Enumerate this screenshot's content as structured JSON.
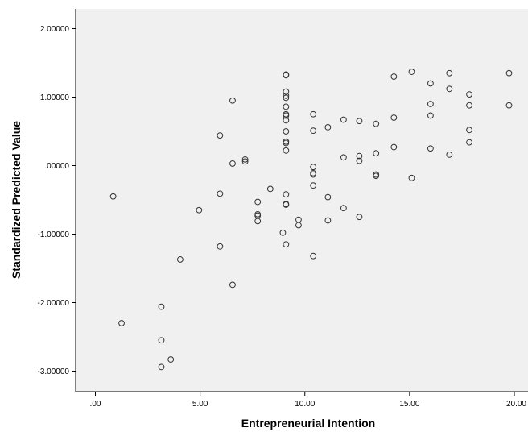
{
  "chart_data": {
    "type": "scatter",
    "title": "",
    "xlabel": "Entrepreneurial Intention",
    "ylabel": "Standardized Predicted Value",
    "xlim": [
      0,
      20
    ],
    "ylim": [
      -3.3,
      2.3
    ],
    "xticks": [
      0,
      5,
      10,
      15,
      20
    ],
    "xtick_labels": [
      ".00",
      "5.00",
      "10.00",
      "15.00",
      "20.00"
    ],
    "yticks": [
      -3,
      -2,
      -1,
      0,
      1,
      2
    ],
    "ytick_labels": [
      "-3.00000",
      "-2.00000",
      "-1.00000",
      ".00000",
      "1.00000",
      "2.00000"
    ],
    "grid": false,
    "legend": "none",
    "colors": {
      "plot_background": "#f0f0f0",
      "marker_stroke": "#333333",
      "axis": "#000000"
    },
    "points": [
      {
        "x": 0.85,
        "y": -0.45
      },
      {
        "x": 1.25,
        "y": -2.3
      },
      {
        "x": 3.15,
        "y": -2.06
      },
      {
        "x": 3.15,
        "y": -2.55
      },
      {
        "x": 3.15,
        "y": -2.94
      },
      {
        "x": 3.6,
        "y": -2.83
      },
      {
        "x": 4.05,
        "y": -1.37
      },
      {
        "x": 4.95,
        "y": -0.65
      },
      {
        "x": 5.95,
        "y": 0.44
      },
      {
        "x": 5.95,
        "y": -0.41
      },
      {
        "x": 5.95,
        "y": -1.18
      },
      {
        "x": 6.55,
        "y": 0.95
      },
      {
        "x": 6.55,
        "y": 0.03
      },
      {
        "x": 6.55,
        "y": -1.74
      },
      {
        "x": 7.15,
        "y": 0.09
      },
      {
        "x": 7.15,
        "y": 0.06
      },
      {
        "x": 7.75,
        "y": -0.53
      },
      {
        "x": 7.75,
        "y": -0.71
      },
      {
        "x": 7.75,
        "y": -0.73
      },
      {
        "x": 7.75,
        "y": -0.81
      },
      {
        "x": 8.35,
        "y": -0.34
      },
      {
        "x": 8.95,
        "y": -0.98
      },
      {
        "x": 9.1,
        "y": 1.33
      },
      {
        "x": 9.1,
        "y": 1.32
      },
      {
        "x": 9.1,
        "y": 1.08
      },
      {
        "x": 9.1,
        "y": 1.02
      },
      {
        "x": 9.1,
        "y": 0.99
      },
      {
        "x": 9.1,
        "y": 0.86
      },
      {
        "x": 9.1,
        "y": 0.75
      },
      {
        "x": 9.1,
        "y": 0.73
      },
      {
        "x": 9.1,
        "y": 0.66
      },
      {
        "x": 9.1,
        "y": 0.5
      },
      {
        "x": 9.1,
        "y": 0.35
      },
      {
        "x": 9.1,
        "y": 0.33
      },
      {
        "x": 9.1,
        "y": 0.22
      },
      {
        "x": 9.1,
        "y": -0.42
      },
      {
        "x": 9.1,
        "y": -0.56
      },
      {
        "x": 9.1,
        "y": -0.57
      },
      {
        "x": 9.1,
        "y": -1.15
      },
      {
        "x": 9.7,
        "y": -0.79
      },
      {
        "x": 9.7,
        "y": -0.87
      },
      {
        "x": 10.4,
        "y": 0.75
      },
      {
        "x": 10.4,
        "y": 0.51
      },
      {
        "x": 10.4,
        "y": -0.02
      },
      {
        "x": 10.4,
        "y": -0.11
      },
      {
        "x": 10.4,
        "y": -0.13
      },
      {
        "x": 10.4,
        "y": -0.29
      },
      {
        "x": 10.4,
        "y": -1.32
      },
      {
        "x": 11.1,
        "y": 0.56
      },
      {
        "x": 11.1,
        "y": -0.46
      },
      {
        "x": 11.1,
        "y": -0.8
      },
      {
        "x": 11.85,
        "y": 0.67
      },
      {
        "x": 11.85,
        "y": 0.12
      },
      {
        "x": 11.85,
        "y": -0.62
      },
      {
        "x": 12.6,
        "y": 0.65
      },
      {
        "x": 12.6,
        "y": 0.14
      },
      {
        "x": 12.6,
        "y": 0.07
      },
      {
        "x": 12.6,
        "y": -0.75
      },
      {
        "x": 13.4,
        "y": 0.61
      },
      {
        "x": 13.4,
        "y": 0.18
      },
      {
        "x": 13.4,
        "y": -0.13
      },
      {
        "x": 13.4,
        "y": -0.15
      },
      {
        "x": 14.25,
        "y": 1.3
      },
      {
        "x": 14.25,
        "y": 0.7
      },
      {
        "x": 14.25,
        "y": 0.27
      },
      {
        "x": 15.1,
        "y": 1.37
      },
      {
        "x": 15.1,
        "y": -0.18
      },
      {
        "x": 16.0,
        "y": 1.2
      },
      {
        "x": 16.0,
        "y": 0.9
      },
      {
        "x": 16.0,
        "y": 0.73
      },
      {
        "x": 16.0,
        "y": 0.25
      },
      {
        "x": 16.9,
        "y": 1.35
      },
      {
        "x": 16.9,
        "y": 1.12
      },
      {
        "x": 16.9,
        "y": 0.16
      },
      {
        "x": 17.85,
        "y": 1.04
      },
      {
        "x": 17.85,
        "y": 0.88
      },
      {
        "x": 17.85,
        "y": 0.52
      },
      {
        "x": 17.85,
        "y": 0.34
      },
      {
        "x": 19.75,
        "y": 1.35
      },
      {
        "x": 19.75,
        "y": 0.88
      }
    ]
  }
}
